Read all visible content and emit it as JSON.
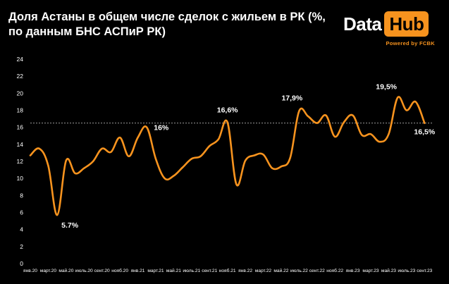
{
  "header": {
    "title": "Доля Астаны в общем числе сделок с жильем в РК (%, по данным БНС АСПиР РК)"
  },
  "logo": {
    "word_data": "Data",
    "word_hub": "Hub",
    "tagline": "Powered by FCBK"
  },
  "colors": {
    "background": "#000000",
    "line": "#f7931e",
    "text": "#ffffff",
    "reference_line": "#9a9a9a"
  },
  "chart_data": {
    "type": "line",
    "title": "Доля Астаны в общем числе сделок с жильем в РК (%, по данным БНС АСПиР РК)",
    "xlabel": "",
    "ylabel": "",
    "ylim": [
      0,
      24
    ],
    "y_ticks": [
      0,
      2,
      4,
      6,
      8,
      10,
      12,
      14,
      16,
      18,
      20,
      22,
      24
    ],
    "grid": false,
    "legend": "none",
    "x_tick_labels": [
      "янв.20",
      "март.20",
      "май.20",
      "июль.20",
      "сент.20",
      "нояб.20",
      "янв.21",
      "март.21",
      "май.21",
      "июль.21",
      "сент.21",
      "нояб.21",
      "янв.22",
      "март.22",
      "май.22",
      "июль.22",
      "сент.22",
      "нояб.22",
      "янв.23",
      "март.23",
      "май.23",
      "июль.23",
      "сент.23"
    ],
    "x": [
      "янв.20",
      "фев.20",
      "март.20",
      "апр.20",
      "май.20",
      "июнь.20",
      "июль.20",
      "авг.20",
      "сент.20",
      "окт.20",
      "нояб.20",
      "дек.20",
      "янв.21",
      "фев.21",
      "март.21",
      "апр.21",
      "май.21",
      "июнь.21",
      "июль.21",
      "авг.21",
      "сент.21",
      "окт.21",
      "нояб.21",
      "дек.21",
      "янв.22",
      "фев.22",
      "март.22",
      "апр.22",
      "май.22",
      "июнь.22",
      "июль.22",
      "авг.22",
      "сент.22",
      "окт.22",
      "нояб.22",
      "дек.22",
      "янв.23",
      "фев.23",
      "март.23",
      "апр.23",
      "май.23",
      "июнь.23",
      "июль.23",
      "авг.23",
      "сент.23",
      "окт.23"
    ],
    "series": [
      {
        "name": "",
        "values": [
          12.7,
          13.5,
          11.5,
          5.7,
          12.1,
          10.6,
          11.2,
          12.0,
          13.5,
          13.1,
          14.8,
          12.6,
          14.8,
          16.0,
          12.3,
          10.0,
          10.3,
          11.3,
          12.3,
          12.6,
          13.8,
          14.6,
          16.6,
          9.3,
          12.1,
          12.7,
          12.8,
          11.2,
          11.4,
          12.4,
          17.9,
          17.3,
          16.5,
          17.4,
          14.9,
          16.6,
          17.4,
          15.1,
          15.2,
          14.3,
          15.2,
          19.5,
          18.0,
          19.0,
          16.5,
          null
        ],
        "reference_line": 16.5
      }
    ],
    "data_labels": [
      {
        "index": 3,
        "text": "5.7%"
      },
      {
        "index": 13,
        "text": "16%"
      },
      {
        "index": 22,
        "text": "16,6%"
      },
      {
        "index": 30,
        "text": "17,9%"
      },
      {
        "index": 41,
        "text": "19,5%"
      },
      {
        "index": 44,
        "text": "16,5%"
      }
    ]
  }
}
